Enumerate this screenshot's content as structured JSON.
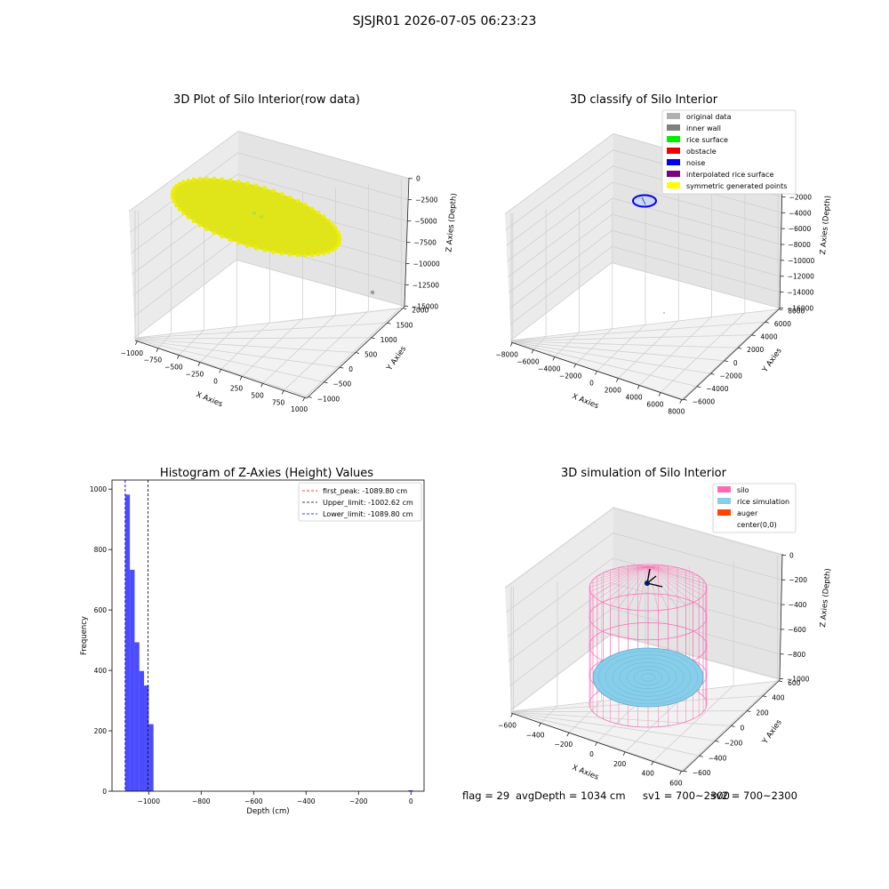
{
  "suptitle": "SJSJR01 2026-07-05 06:23:23",
  "footer": {
    "flag": "flag = 29",
    "avg": "avgDepth = 1034 cm",
    "sv1": "sv1 = 700~2300",
    "sv2": "sv2 = 700~2300"
  },
  "chart_data": [
    {
      "type": "scatter3d",
      "title": "3D Plot of Silo Interior(row data)",
      "xlabel": "X Axies",
      "ylabel": "Y Axies",
      "zlabel": "Z Axies (Depth)",
      "xticks": [
        -1000,
        -750,
        -500,
        -250,
        0,
        250,
        500,
        750,
        1000
      ],
      "yticks": [
        -1000,
        -500,
        0,
        500,
        1000,
        1500,
        2000
      ],
      "zticks": [
        0,
        -2500,
        -5000,
        -7500,
        -10000,
        -12500,
        -15000
      ],
      "series": [
        {
          "points": "disk of points",
          "color": "#e0e51a",
          "z": -1034,
          "radius": 1000
        },
        {
          "points": "single outlier",
          "color": "#999999",
          "x": 750,
          "y": 2000,
          "z": -15500
        }
      ]
    },
    {
      "type": "scatter3d",
      "title": "3D classify of Silo Interior",
      "xlabel": "X Axies",
      "ylabel": "Y Axies",
      "zlabel": "Z Axies (Depth)",
      "xticks": [
        -8000,
        -6000,
        -4000,
        -2000,
        0,
        2000,
        4000,
        6000,
        8000
      ],
      "yticks": [
        -6000,
        -4000,
        -2000,
        0,
        2000,
        4000,
        6000,
        8000
      ],
      "zticks": [
        0,
        -2000,
        -4000,
        -6000,
        -8000,
        -10000,
        -12000,
        -14000,
        -16000
      ],
      "legend": [
        {
          "label": "original data",
          "color": "#b0b0b0"
        },
        {
          "label": "inner wall",
          "color": "#808080"
        },
        {
          "label": "rice surface",
          "color": "#00ee00"
        },
        {
          "label": "obstacle",
          "color": "#ee0000"
        },
        {
          "label": "noise",
          "color": "#0000ee"
        },
        {
          "label": "interpolated rice surface",
          "color": "#800080"
        },
        {
          "label": "symmetric generated points",
          "color": "#ffff00"
        }
      ]
    },
    {
      "type": "histogram",
      "title": "Histogram of Z-Axies (Height) Values",
      "xlabel": "Depth (cm)",
      "ylabel": "Frequency",
      "xlim": [
        -1140,
        50
      ],
      "ylim": [
        0,
        1030
      ],
      "xticks": [
        -1000,
        -800,
        -600,
        -400,
        -200,
        0
      ],
      "yticks": [
        0,
        200,
        400,
        600,
        800,
        1000
      ],
      "bin_width": 18,
      "bins": [
        {
          "x0": -1089.8,
          "count": 982
        },
        {
          "x0": -1071.8,
          "count": 733
        },
        {
          "x0": -1053.8,
          "count": 493
        },
        {
          "x0": -1035.8,
          "count": 398
        },
        {
          "x0": -1017.8,
          "count": 350
        },
        {
          "x0": -999.8,
          "count": 222
        },
        {
          "x0": -10,
          "count": 3
        }
      ],
      "lines": [
        {
          "label": "first_peak: -1089.80 cm",
          "x": -1089.8,
          "color": "#ff0000"
        },
        {
          "label": "Upper_limit: -1002.62 cm",
          "x": -1002.62,
          "color": "#000000"
        },
        {
          "label": "Lower_limit: -1089.80 cm",
          "x": -1089.8,
          "color": "#0000ff"
        }
      ],
      "bar_color": "#0000ff"
    },
    {
      "type": "surface3d",
      "title": "3D simulation of Silo Interior",
      "xlabel": "X Axies",
      "ylabel": "Y Axies",
      "zlabel": "Z Axies (Depth)",
      "xticks": [
        -600,
        -400,
        -200,
        0,
        200,
        400,
        600
      ],
      "yticks": [
        -600,
        -400,
        -200,
        0,
        200,
        400,
        600
      ],
      "zticks": [
        0,
        -200,
        -400,
        -600,
        -800,
        -1000
      ],
      "legend": [
        {
          "label": "silo",
          "color": "#ff69b4"
        },
        {
          "label": "rice simulation",
          "color": "#87ceeb"
        },
        {
          "label": "auger",
          "color": "#ff4500"
        },
        {
          "label": "center(0,0)",
          "color": ""
        }
      ]
    }
  ]
}
